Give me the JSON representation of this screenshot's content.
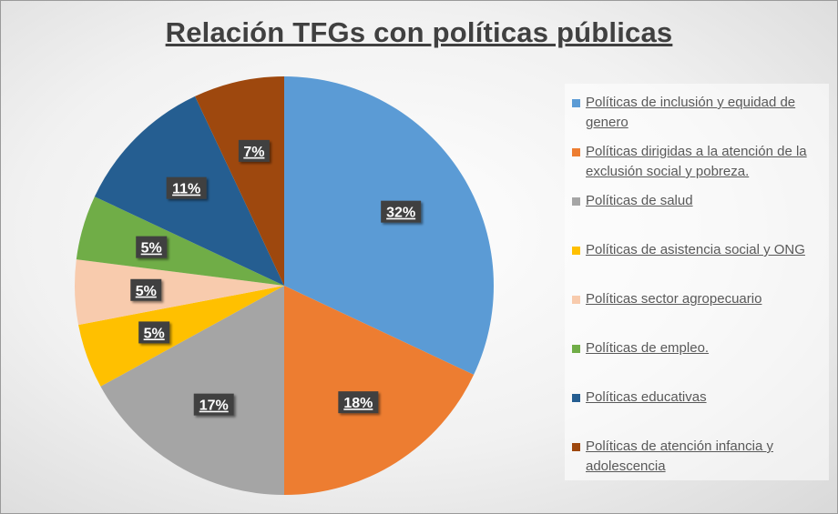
{
  "chart_data": {
    "type": "pie",
    "title": "Relación TFGs con políticas públicas",
    "slices": [
      {
        "name": "Políticas de inclusión y equidad de genero",
        "value": 32,
        "label": "32%",
        "color": "#5B9BD5"
      },
      {
        "name": "Políticas dirigidas a la atención de la exclusión social y pobreza.",
        "value": 18,
        "label": "18%",
        "color": "#ED7D31"
      },
      {
        "name": "Políticas de salud",
        "value": 17,
        "label": "17%",
        "color": "#A5A5A5"
      },
      {
        "name": "Políticas de asistencia social y ONG",
        "value": 5,
        "label": "5%",
        "color": "#FFC000"
      },
      {
        "name": "Políticas sector agropecuario",
        "value": 5,
        "label": "5%",
        "color": "#F8CBAD"
      },
      {
        "name": "Políticas de empleo.",
        "value": 5,
        "label": "5%",
        "color": "#70AD47"
      },
      {
        "name": " Políticas educativas",
        "value": 11,
        "label": "11%",
        "color": "#255E91"
      },
      {
        "name": "Políticas de atención infancia y adolescencia",
        "value": 7,
        "label": "7%",
        "color": "#9E480E"
      }
    ],
    "legend_position": "right"
  }
}
